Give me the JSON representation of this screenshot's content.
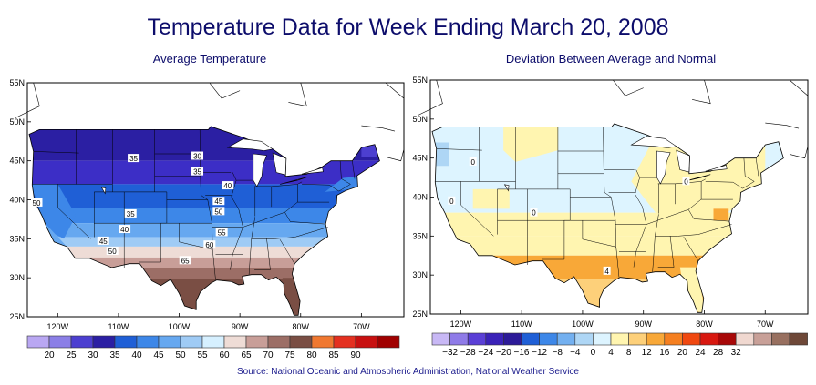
{
  "title": "Temperature Data for Week Ending March 20, 2008",
  "source": "Source:  National Oceanic and Atmospheric Administration, National Weather Service",
  "maps": [
    {
      "id": "avg",
      "subtitle": "Average Temperature",
      "lat_labels": [
        "55N",
        "50N",
        "45N",
        "40N",
        "35N",
        "30N",
        "25N"
      ],
      "lon_labels": [
        "120W",
        "110W",
        "100W",
        "90W",
        "80W",
        "70W"
      ],
      "contour_labels": [
        "35",
        "30",
        "35",
        "40",
        "45",
        "50",
        "50",
        "35",
        "40",
        "45",
        "55",
        "60",
        "65",
        "50"
      ],
      "legend_labels": [
        "20",
        "25",
        "30",
        "35",
        "40",
        "45",
        "50",
        "55",
        "60",
        "65",
        "70",
        "75",
        "80",
        "85",
        "90"
      ],
      "legend_colors": [
        "#b9a7f2",
        "#8b7fe6",
        "#4c3fd0",
        "#2b1fa3",
        "#1f5fd6",
        "#3d87e8",
        "#66a8f0",
        "#9fcbf5",
        "#d6f0ff",
        "#eedcd6",
        "#c89e98",
        "#9c6e66",
        "#7a4e44",
        "#f07830",
        "#e43020",
        "#c81010",
        "#a00000"
      ]
    },
    {
      "id": "dev",
      "subtitle": "Deviation Between Average and Normal",
      "lat_labels": [
        "55N",
        "50N",
        "45N",
        "40N",
        "35N",
        "30N",
        "25N"
      ],
      "lon_labels": [
        "120W",
        "110W",
        "100W",
        "90W",
        "80W",
        "70W"
      ],
      "contour_labels": [
        "0",
        "0",
        "0",
        "0",
        "4"
      ],
      "legend_labels": [
        "−32",
        "−28",
        "−24",
        "−20",
        "−16",
        "−12",
        "−8",
        "−4",
        "0",
        "4",
        "8",
        "12",
        "16",
        "20",
        "24",
        "28",
        "32"
      ],
      "legend_colors": [
        "#c8b8f5",
        "#8f7be8",
        "#5a3fd6",
        "#3a22b8",
        "#2c1a98",
        "#1f5fd6",
        "#3d87e8",
        "#73b0f0",
        "#aed6f5",
        "#ddf4ff",
        "#fff5b0",
        "#fdd07a",
        "#f8a838",
        "#f57f20",
        "#f04810",
        "#d81810",
        "#a80808",
        "#f0d8d0",
        "#c8a098",
        "#987060",
        "#6e4838"
      ]
    }
  ]
}
